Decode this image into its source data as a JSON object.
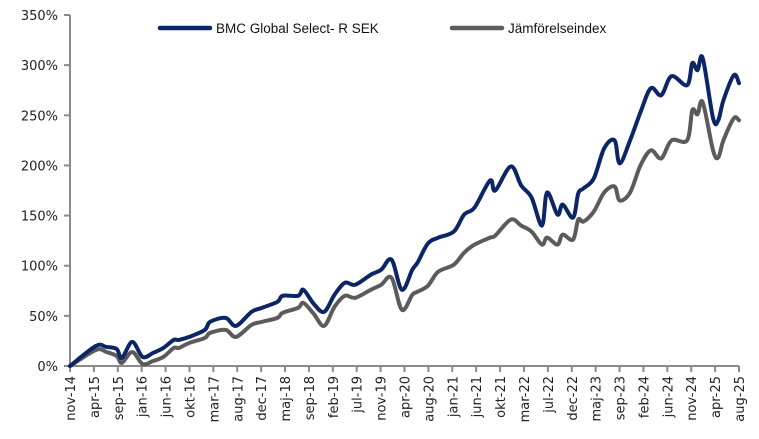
{
  "chart_data": {
    "type": "line",
    "title": "",
    "xlabel": "",
    "ylabel": "",
    "ylim": [
      0,
      350
    ],
    "yticks": [
      "0%",
      "50%",
      "100%",
      "150%",
      "200%",
      "250%",
      "300%",
      "350%"
    ],
    "ytick_values": [
      0,
      50,
      100,
      150,
      200,
      250,
      300,
      350
    ],
    "xlim": [
      "2014-11",
      "2025-08"
    ],
    "xticks": [
      "nov-14",
      "apr-15",
      "sep-15",
      "jan-16",
      "jun-16",
      "okt-16",
      "mar-17",
      "aug-17",
      "dec-17",
      "maj-18",
      "sep-18",
      "feb-19",
      "jul-19",
      "nov-19",
      "apr-20",
      "aug-20",
      "jan-21",
      "jun-21",
      "okt-21",
      "mar-22",
      "jul-22",
      "dec-22",
      "maj-23",
      "sep-23",
      "feb-24",
      "jun-24",
      "nov-24",
      "apr-25",
      "aug-25"
    ],
    "grid": false,
    "legend_position": "top-center",
    "x": [
      "2014-11",
      "2015-04",
      "2015-06",
      "2015-08",
      "2015-09",
      "2015-11",
      "2016-01",
      "2016-03",
      "2016-05",
      "2016-07",
      "2016-08",
      "2016-10",
      "2017-01",
      "2017-02",
      "2017-05",
      "2017-07",
      "2017-10",
      "2017-12",
      "2018-03",
      "2018-04",
      "2018-07",
      "2018-08",
      "2018-10",
      "2018-12",
      "2019-02",
      "2019-04",
      "2019-06",
      "2019-09",
      "2019-11",
      "2020-01",
      "2020-03",
      "2020-05",
      "2020-06",
      "2020-08",
      "2020-10",
      "2021-01",
      "2021-03",
      "2021-05",
      "2021-08",
      "2021-09",
      "2021-12",
      "2022-02",
      "2022-04",
      "2022-06",
      "2022-07",
      "2022-09",
      "2022-10",
      "2022-12",
      "2023-01",
      "2023-02",
      "2023-04",
      "2023-06",
      "2023-08",
      "2023-09",
      "2023-11",
      "2024-01",
      "2024-03",
      "2024-05",
      "2024-07",
      "2024-10",
      "2024-11",
      "2024-12",
      "2025-01",
      "2025-03",
      "2025-04",
      "2025-05",
      "2025-07",
      "2025-08"
    ],
    "series": [
      {
        "name": "BMC Global Select- R SEK",
        "color": "#0b2566",
        "values": [
          0,
          20,
          19,
          17,
          8,
          24,
          9,
          13,
          18,
          26,
          26,
          29,
          36,
          44,
          48,
          40,
          54,
          58,
          64,
          70,
          70,
          76,
          62,
          54,
          71,
          83,
          81,
          91,
          96,
          106,
          76,
          96,
          103,
          122,
          128,
          134,
          151,
          158,
          185,
          175,
          199,
          180,
          168,
          140,
          173,
          151,
          161,
          148,
          172,
          177,
          187,
          217,
          225,
          202,
          225,
          253,
          277,
          270,
          289,
          280,
          302,
          295,
          307,
          247,
          245,
          265,
          290,
          282
        ]
      },
      {
        "name": "Jämförelseindex",
        "color": "#5b5b5b",
        "values": [
          0,
          16,
          14,
          10,
          3,
          14,
          2,
          5,
          9,
          18,
          18,
          23,
          28,
          33,
          36,
          29,
          41,
          44,
          48,
          53,
          58,
          63,
          52,
          40,
          59,
          70,
          68,
          76,
          81,
          88,
          56,
          71,
          74,
          80,
          94,
          101,
          113,
          121,
          128,
          130,
          146,
          140,
          134,
          121,
          128,
          121,
          131,
          126,
          146,
          144,
          154,
          173,
          179,
          165,
          173,
          200,
          215,
          207,
          225,
          225,
          255,
          251,
          263,
          215,
          208,
          225,
          247,
          245
        ]
      }
    ]
  }
}
